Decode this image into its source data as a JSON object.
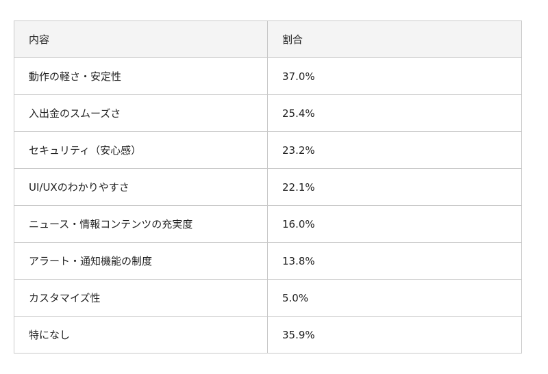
{
  "table": {
    "headers": [
      "内容",
      "割合"
    ],
    "rows": [
      [
        "動作の軽さ・安定性",
        "37.0%"
      ],
      [
        "入出金のスムーズさ",
        "25.4%"
      ],
      [
        "セキュリティ（安心感）",
        "23.2%"
      ],
      [
        "UI/UXのわかりやすさ",
        "22.1%"
      ],
      [
        "ニュース・情報コンテンツの充実度",
        "16.0%"
      ],
      [
        "アラート・通知機能の制度",
        "13.8%"
      ],
      [
        "カスタマイズ性",
        "5.0%"
      ],
      [
        "特になし",
        "35.9%"
      ]
    ]
  },
  "colors": {
    "header_bg": "#f4f4f4",
    "border": "#c8c8c8",
    "text": "#222222"
  }
}
